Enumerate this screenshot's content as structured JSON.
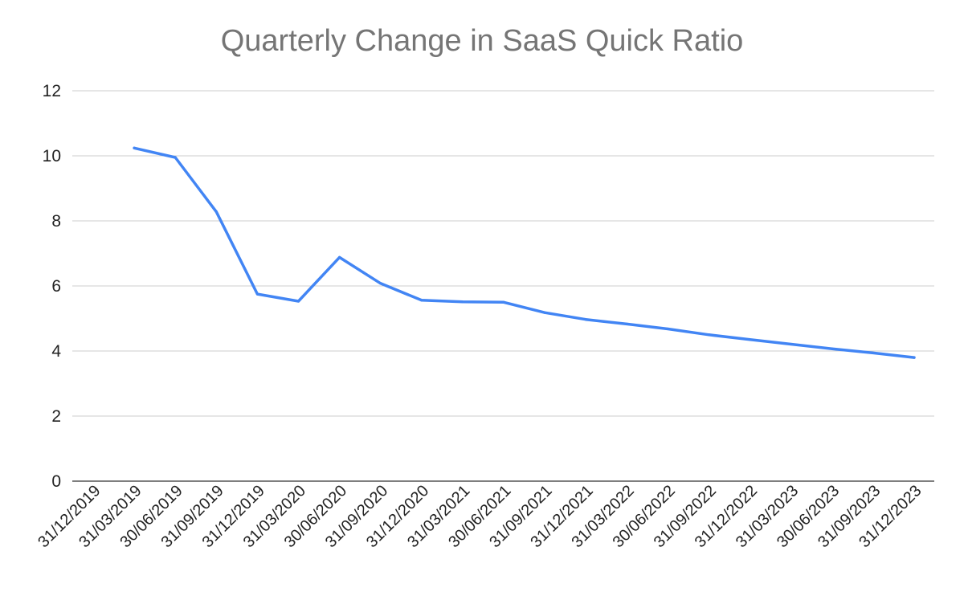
{
  "chart_data": {
    "type": "line",
    "title": "Quarterly Change in SaaS Quick Ratio",
    "xlabel": "",
    "ylabel": "",
    "ylim": [
      0,
      12
    ],
    "yticks": [
      "0",
      "2",
      "4",
      "6",
      "8",
      "10",
      "12"
    ],
    "grid": true,
    "legend": "none",
    "categories": [
      "31/12/2019",
      "31/03/2019",
      "30/06/2019",
      "31/09/2019",
      "31/12/2019",
      "31/03/2020",
      "30/06/2020",
      "31/09/2020",
      "31/12/2020",
      "31/03/2021",
      "30/06/2021",
      "31/09/2021",
      "31/12/2021",
      "31/03/2022",
      "30/06/2022",
      "31/09/2022",
      "31/12/2022",
      "31/03/2023",
      "30/06/2023",
      "31/09/2023",
      "31/12/2023"
    ],
    "series": [
      {
        "color": "#4285F4",
        "values": [
          null,
          10.24,
          9.95,
          8.28,
          5.75,
          5.53,
          6.88,
          6.08,
          5.56,
          5.51,
          5.5,
          5.18,
          4.97,
          4.83,
          4.68,
          4.5,
          4.35,
          4.21,
          4.07,
          3.94,
          3.8
        ]
      }
    ],
    "colors": {
      "grid": "#cccccc",
      "axis": "#333333"
    }
  }
}
